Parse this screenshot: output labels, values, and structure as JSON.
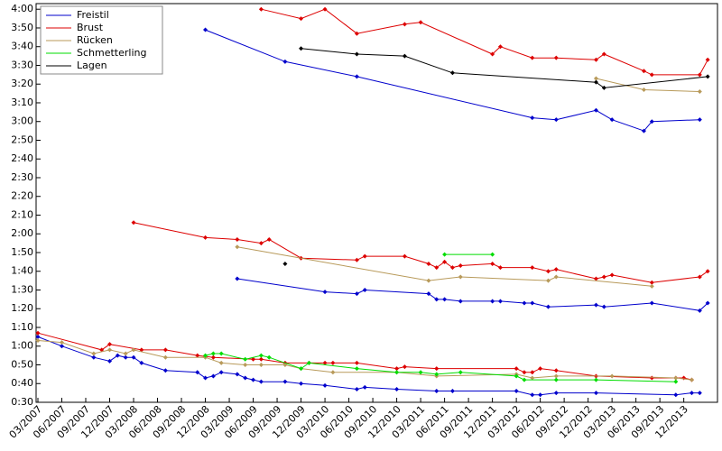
{
  "chart_data": {
    "type": "line",
    "xlim": [
      "03/2007",
      "04/2014"
    ],
    "ylim": [
      30,
      243
    ],
    "xticks": [
      "03/2007",
      "06/2007",
      "09/2007",
      "12/2007",
      "03/2008",
      "06/2008",
      "09/2008",
      "12/2008",
      "03/2009",
      "06/2009",
      "09/2009",
      "12/2009",
      "03/2010",
      "06/2010",
      "09/2010",
      "12/2010",
      "03/2011",
      "06/2011",
      "09/2011",
      "12/2011",
      "03/2012",
      "06/2012",
      "09/2012",
      "12/2012",
      "03/2013",
      "06/2013",
      "09/2013",
      "12/2013"
    ],
    "yticks": [
      {
        "value": 30,
        "label": "0:30"
      },
      {
        "value": 40,
        "label": "0:40"
      },
      {
        "value": 50,
        "label": "0:50"
      },
      {
        "value": 60,
        "label": "1:00"
      },
      {
        "value": 70,
        "label": "1:10"
      },
      {
        "value": 80,
        "label": "1:20"
      },
      {
        "value": 90,
        "label": "1:30"
      },
      {
        "value": 100,
        "label": "1:40"
      },
      {
        "value": 110,
        "label": "1:50"
      },
      {
        "value": 120,
        "label": "2:00"
      },
      {
        "value": 130,
        "label": "2:10"
      },
      {
        "value": 140,
        "label": "2:20"
      },
      {
        "value": 150,
        "label": "2:30"
      },
      {
        "value": 160,
        "label": "2:40"
      },
      {
        "value": 170,
        "label": "2:50"
      },
      {
        "value": 180,
        "label": "3:00"
      },
      {
        "value": 190,
        "label": "3:10"
      },
      {
        "value": 200,
        "label": "3:20"
      },
      {
        "value": 210,
        "label": "3:30"
      },
      {
        "value": 220,
        "label": "3:40"
      },
      {
        "value": 230,
        "label": "3:50"
      },
      {
        "value": 240,
        "label": "4:00"
      }
    ],
    "legend": "upper left",
    "series": [
      {
        "name": "Freistil",
        "color": "#0000cc",
        "x": [
          "12/2008",
          "10/2009",
          "07/2010",
          "05/2012",
          "08/2012",
          "01/2013",
          "03/2013",
          "07/2013",
          "08/2013",
          "02/2014",
          null,
          "04/2009",
          "03/2010",
          "07/2010",
          "08/2010",
          "04/2011",
          "05/2011",
          "06/2011",
          "08/2011",
          "12/2011",
          "01/2012",
          "04/2012",
          "05/2012",
          "07/2012",
          "01/2013",
          "02/2013",
          "08/2013",
          "02/2014",
          "03/2014",
          null,
          "03/2007",
          "06/2007",
          "10/2007",
          "12/2007",
          "01/2008",
          "02/2008",
          "03/2008",
          "04/2008",
          "07/2008",
          "11/2008",
          "12/2008",
          "01/2009",
          "02/2009",
          "04/2009",
          "05/2009",
          "06/2009",
          "07/2009",
          "10/2009",
          "12/2009",
          "03/2010",
          "07/2010",
          "08/2010",
          "12/2010",
          "05/2011",
          "07/2011",
          "03/2012",
          "05/2012",
          "06/2012",
          "08/2012",
          "01/2013",
          "11/2013",
          "01/2014",
          "02/2014"
        ],
        "values": [
          229,
          212,
          204,
          182,
          181,
          186,
          181,
          175,
          180,
          181,
          null,
          96,
          89,
          88,
          90,
          88,
          85,
          85,
          84,
          84,
          84,
          83,
          83,
          81,
          82,
          81,
          83,
          79,
          83,
          null,
          65,
          60,
          54,
          52,
          55,
          54,
          54,
          51,
          47,
          46,
          43,
          44,
          46,
          45,
          43,
          42,
          41,
          41,
          40,
          39,
          37,
          38,
          37,
          36,
          36,
          36,
          34,
          34,
          35,
          35,
          34,
          35,
          35
        ]
      },
      {
        "name": "Brust",
        "color": "#dd0000",
        "x": [
          "07/2009",
          "12/2009",
          "03/2010",
          "07/2010",
          "01/2011",
          "03/2011",
          "12/2011",
          "01/2012",
          "05/2012",
          "08/2012",
          "01/2013",
          "02/2013",
          "07/2013",
          "08/2013",
          "02/2014",
          "03/2014",
          null,
          "03/2008",
          "12/2008",
          "04/2009",
          "07/2009",
          "08/2009",
          "12/2009",
          "07/2010",
          "08/2010",
          "01/2011",
          "04/2011",
          "05/2011",
          "06/2011",
          "07/2011",
          "08/2011",
          "12/2011",
          "01/2012",
          "05/2012",
          "07/2012",
          "08/2012",
          "01/2013",
          "02/2013",
          "03/2013",
          "08/2013",
          "02/2014",
          "03/2014",
          null,
          "03/2007",
          "11/2007",
          "12/2007",
          "04/2008",
          "07/2008",
          "11/2008",
          "01/2009",
          "06/2009",
          "07/2009",
          "10/2009",
          "01/2010",
          "03/2010",
          "04/2010",
          "07/2010",
          "12/2010",
          "01/2011",
          "05/2011",
          "03/2012",
          "04/2012",
          "05/2012",
          "06/2012",
          "08/2012",
          "01/2013",
          "08/2013",
          "11/2013",
          "12/2013",
          "01/2014"
        ],
        "values": [
          240,
          235,
          240,
          227,
          232,
          233,
          216,
          220,
          214,
          214,
          213,
          216,
          207,
          205,
          205,
          213,
          null,
          126,
          118,
          117,
          115,
          117,
          107,
          106,
          108,
          108,
          104,
          102,
          105,
          102,
          103,
          104,
          102,
          102,
          100,
          101,
          96,
          97,
          98,
          94,
          97,
          100,
          null,
          67,
          58,
          61,
          58,
          58,
          55,
          54,
          53,
          53,
          51,
          51,
          51,
          51,
          51,
          48,
          49,
          48,
          48,
          46,
          46,
          48,
          47,
          44,
          43,
          43,
          43,
          42
        ]
      },
      {
        "name": "Rücken",
        "color": "#b89a5a",
        "x": [
          "01/2013",
          "07/2013",
          "02/2014",
          null,
          "04/2009",
          "04/2011",
          "08/2011",
          "07/2012",
          "08/2012",
          "08/2013",
          null,
          "03/2007",
          "06/2007",
          "10/2007",
          "12/2007",
          "02/2008",
          "03/2008",
          "07/2008",
          "12/2008",
          "02/2009",
          "05/2009",
          "07/2009",
          "10/2009",
          "12/2009",
          "04/2010",
          "12/2010",
          "05/2011",
          "03/2012",
          "05/2012",
          "08/2012",
          "03/2013",
          "11/2013",
          "01/2014"
        ],
        "values": [
          203,
          197,
          196,
          null,
          113,
          95,
          97,
          95,
          97,
          92,
          null,
          63,
          62,
          56,
          58,
          56,
          58,
          54,
          54,
          51,
          50,
          50,
          50,
          48,
          46,
          46,
          44,
          45,
          43,
          44,
          44,
          43,
          42
        ]
      },
      {
        "name": "Schmetterling",
        "color": "#00dd00",
        "x": [
          "06/2011",
          "12/2011",
          null,
          "12/2008",
          "01/2009",
          "02/2009",
          "05/2009",
          "07/2009",
          "08/2009",
          "12/2009",
          "01/2010",
          "07/2010",
          "12/2010",
          "03/2011",
          "05/2011",
          "08/2011",
          "03/2012",
          "04/2012",
          "08/2012",
          "01/2013",
          "11/2013"
        ],
        "values": [
          109,
          109,
          null,
          55,
          56,
          56,
          53,
          55,
          54,
          48,
          51,
          48,
          46,
          46,
          45,
          46,
          44,
          42,
          42,
          42,
          41
        ]
      },
      {
        "name": "Lagen",
        "color": "#000000",
        "x": [
          "12/2009",
          "07/2010",
          "01/2011",
          "07/2011",
          "01/2013",
          "02/2013",
          "03/2014",
          null,
          "10/2009"
        ],
        "values": [
          219,
          216,
          215,
          206,
          201,
          198,
          204,
          null,
          104
        ]
      }
    ]
  }
}
